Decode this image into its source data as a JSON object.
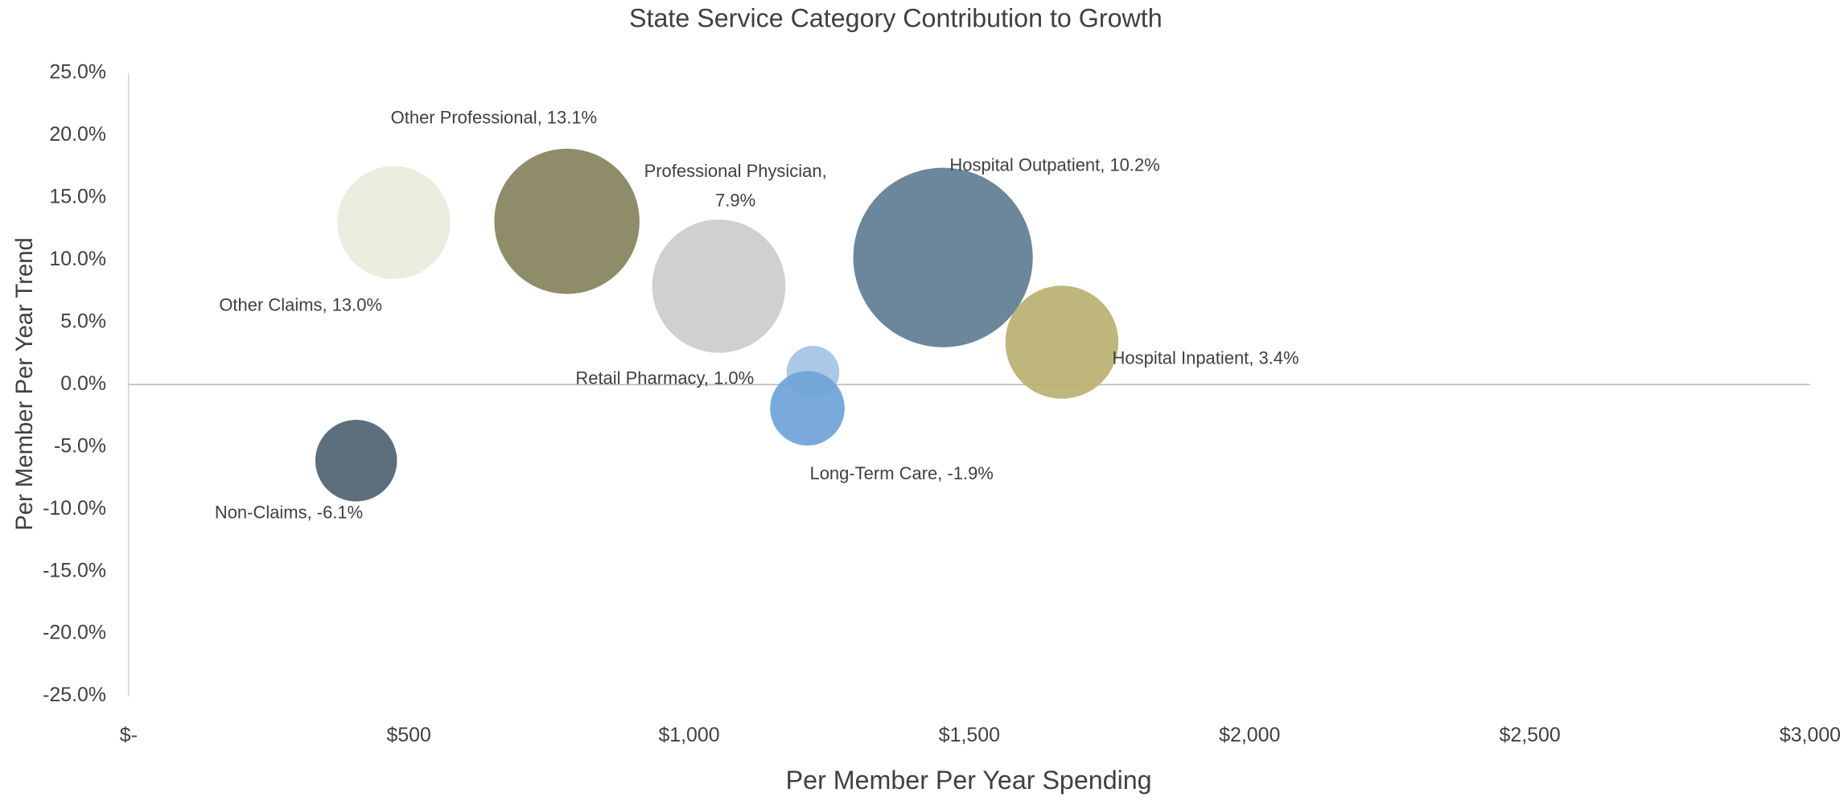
{
  "chart_data": {
    "type": "bubble",
    "title": "State Service Category Contribution to Growth",
    "x_label": "Per Member Per Year Spending",
    "y_label": "Per Member Per Year Trend",
    "x": [
      473,
      782,
      1053,
      1453,
      1665,
      1221,
      1211,
      406
    ],
    "values": [
      13.0,
      13.1,
      7.9,
      10.2,
      3.4,
      1.0,
      -1.9,
      -6.1
    ],
    "sizes": [
      23,
      38,
      32,
      58,
      23,
      5,
      10,
      12
    ],
    "colors": [
      "#ecebdc",
      "#85825c",
      "#cccccc",
      "#5f7c93",
      "#b8b06f",
      "#a4c3e5",
      "#6fa3d9",
      "#4f6272"
    ],
    "value_labels": [
      "Other Claims, 13.0%",
      "Other Professional, 13.1%",
      "Professional Physician,\n7.9%",
      "Hospital Outpatient, 10.2%",
      "Hospital Inpatient, 3.4%",
      "Retail Pharmacy, 1.0%",
      "Long-Term Care, -1.9%",
      "Non-Claims, -6.1%"
    ],
    "xlim": [
      0,
      3000
    ],
    "xticks": [
      {
        "value": 0,
        "label": "$-"
      },
      {
        "value": 500,
        "label": "$500"
      },
      {
        "value": 1000,
        "label": "$1,000"
      },
      {
        "value": 1500,
        "label": "$1,500"
      },
      {
        "value": 2000,
        "label": "$2,000"
      },
      {
        "value": 2500,
        "label": "$2,500"
      },
      {
        "value": 3000,
        "label": "$3,000"
      }
    ],
    "ylim": [
      -25,
      25
    ],
    "yticks": [
      {
        "value": -25,
        "label": "-25.0%"
      },
      {
        "value": -20,
        "label": "-20.0%"
      },
      {
        "value": -15,
        "label": "-15.0%"
      },
      {
        "value": -10,
        "label": "-10.0%"
      },
      {
        "value": -5,
        "label": "-5.0%"
      },
      {
        "value": 0,
        "label": "0.0%"
      },
      {
        "value": 5,
        "label": "5.0%"
      },
      {
        "value": 10,
        "label": "10.0%"
      },
      {
        "value": 15,
        "label": "15.0%"
      },
      {
        "value": 20,
        "label": "20.0%"
      },
      {
        "value": 25,
        "label": "25.0%"
      }
    ],
    "grid": false
  }
}
